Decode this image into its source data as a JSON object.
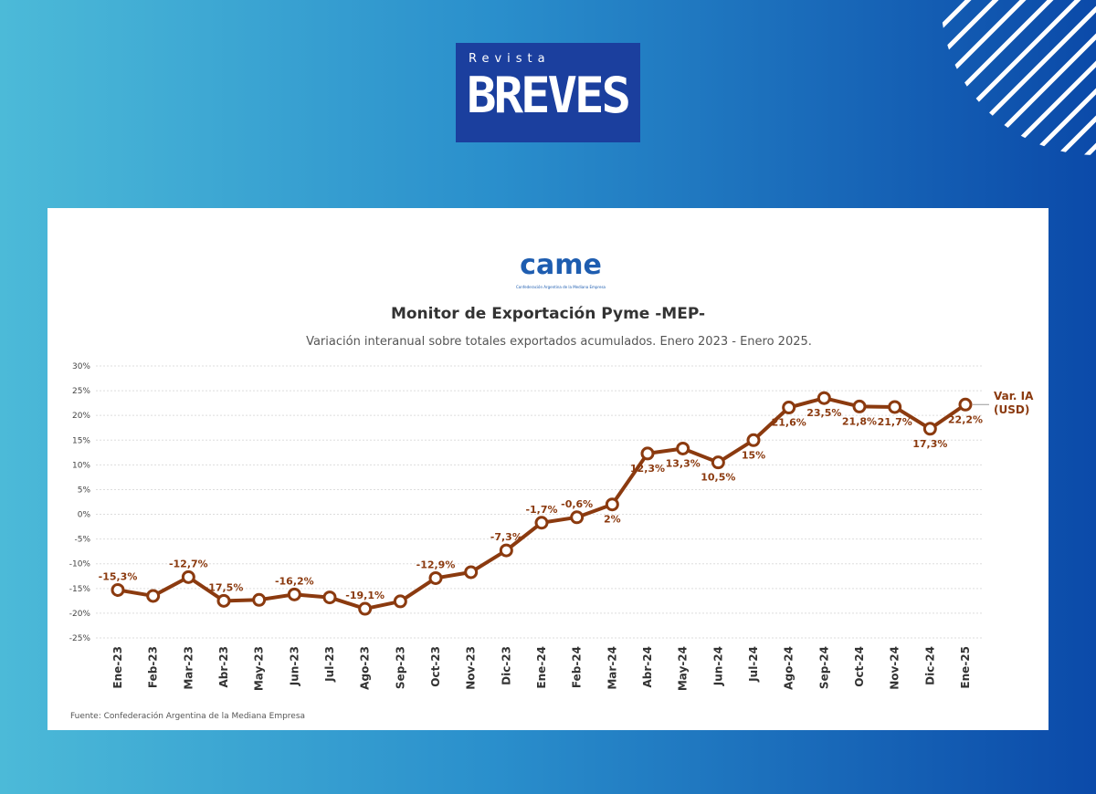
{
  "brand": {
    "kicker": "Revista",
    "name": "BREVES"
  },
  "source_logo": {
    "text": "came",
    "caption": "Confederación Argentina de la Mediana Empresa"
  },
  "chart_data": {
    "type": "line",
    "title": "Monitor de Exportación Pyme -MEP-",
    "subtitle": "Variación interanual sobre totales exportados acumulados. Enero 2023 - Enero 2025.",
    "source": "Fuente: Confederación Argentina de la Mediana Empresa",
    "categories": [
      "Ene-23",
      "Feb-23",
      "Mar-23",
      "Abr-23",
      "May-23",
      "Jun-23",
      "Jul-23",
      "Ago-23",
      "Sep-23",
      "Oct-23",
      "Nov-23",
      "Dic-23",
      "Ene-24",
      "Feb-24",
      "Mar-24",
      "Abr-24",
      "May-24",
      "Jun-24",
      "Jul-24",
      "Ago-24",
      "Sep-24",
      "Oct-24",
      "Nov-24",
      "Dic-24",
      "Ene-25"
    ],
    "series": [
      {
        "name": "Var. IA (USD)",
        "color": "#8b3a0f",
        "values": [
          -15.3,
          -16.5,
          -12.7,
          -17.5,
          -17.3,
          -16.2,
          -16.8,
          -19.1,
          -17.6,
          -12.9,
          -11.7,
          -7.3,
          -1.7,
          -0.6,
          2,
          12.3,
          13.3,
          10.5,
          15,
          21.6,
          23.5,
          21.8,
          21.7,
          17.3,
          22.2
        ],
        "value_labels": [
          "-15,3%",
          null,
          "-12,7%",
          "-17,5%",
          null,
          "-16,2%",
          null,
          "-19,1%",
          null,
          "-12,9%",
          null,
          "-7,3%",
          "-1,7%",
          "-0,6%",
          "2%",
          "12,3%",
          "13,3%",
          "10,5%",
          "15%",
          "21,6%",
          "23,5%",
          "21,8%",
          "21,7%",
          "17,3%",
          "22,2%"
        ]
      }
    ],
    "ylim": [
      -25,
      30
    ],
    "yticks": [
      {
        "value": -25,
        "label": "-25%"
      },
      {
        "value": -20,
        "label": "-20%"
      },
      {
        "value": -15,
        "label": "-15%"
      },
      {
        "value": -10,
        "label": "-10%"
      },
      {
        "value": -5,
        "label": "-5%"
      },
      {
        "value": 0,
        "label": "0%"
      },
      {
        "value": 5,
        "label": "5%"
      },
      {
        "value": 10,
        "label": "10%"
      },
      {
        "value": 15,
        "label": "15%"
      },
      {
        "value": 20,
        "label": "20%"
      },
      {
        "value": 25,
        "label": "25%"
      },
      {
        "value": 30,
        "label": "30%"
      }
    ],
    "grid": true
  }
}
